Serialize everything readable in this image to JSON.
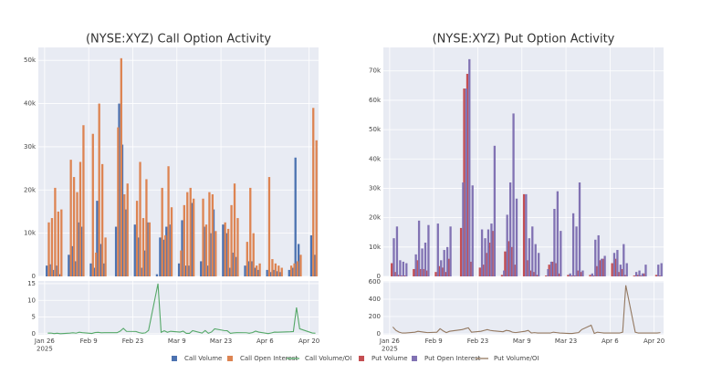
{
  "chart_data": [
    {
      "type": "bar",
      "title": "(NYSE:XYZ) Call Option Activity",
      "x": [
        "2025-01-27",
        "2025-01-28",
        "2025-01-29",
        "2025-01-30",
        "2025-01-31",
        "2025-02-03",
        "2025-02-04",
        "2025-02-05",
        "2025-02-06",
        "2025-02-07",
        "2025-02-10",
        "2025-02-11",
        "2025-02-12",
        "2025-02-13",
        "2025-02-14",
        "2025-02-18",
        "2025-02-19",
        "2025-02-20",
        "2025-02-21",
        "2025-02-24",
        "2025-02-25",
        "2025-02-26",
        "2025-02-27",
        "2025-02-28",
        "2025-03-03",
        "2025-03-04",
        "2025-03-05",
        "2025-03-06",
        "2025-03-07",
        "2025-03-10",
        "2025-03-11",
        "2025-03-12",
        "2025-03-13",
        "2025-03-14",
        "2025-03-17",
        "2025-03-18",
        "2025-03-19",
        "2025-03-20",
        "2025-03-21",
        "2025-03-24",
        "2025-03-25",
        "2025-03-26",
        "2025-03-27",
        "2025-03-28",
        "2025-03-31",
        "2025-04-01",
        "2025-04-02",
        "2025-04-03",
        "2025-04-04",
        "2025-04-07",
        "2025-04-08",
        "2025-04-09",
        "2025-04-10",
        "2025-04-11",
        "2025-04-14",
        "2025-04-15",
        "2025-04-16",
        "2025-04-17",
        "2025-04-21",
        "2025-04-22"
      ],
      "series": [
        {
          "name": "Call Volume",
          "type": "bar",
          "color": "#4c72b0",
          "values": [
            2500,
            2800,
            1500,
            2500,
            500,
            5000,
            7000,
            3500,
            12500,
            11500,
            3000,
            2000,
            17500,
            7500,
            3000,
            11500,
            40000,
            30500,
            15500,
            12000,
            9000,
            2000,
            6000,
            12500,
            500,
            9000,
            8500,
            11500,
            12000,
            3000,
            13000,
            2500,
            2500,
            17000,
            3500,
            11500,
            2500,
            10000,
            15500,
            12000,
            10000,
            2000,
            5500,
            4500,
            2500,
            3500,
            3500,
            2000,
            1500,
            1500,
            1000,
            1500,
            1200,
            1000,
            1500,
            2000,
            27500,
            7500,
            9500,
            5000
          ]
        },
        {
          "name": "Call Open Interest",
          "type": "bar",
          "color": "#dd8452",
          "values": [
            12500,
            13500,
            20500,
            15000,
            15500,
            27000,
            23000,
            19500,
            26500,
            35000,
            33000,
            5500,
            40000,
            26000,
            9000,
            34500,
            50500,
            19000,
            21500,
            17500,
            26500,
            13500,
            22500,
            12500,
            30,
            20500,
            9500,
            25500,
            16000,
            6000,
            16500,
            19500,
            20500,
            18000,
            18000,
            12000,
            19500,
            19000,
            10500,
            12500,
            11000,
            16500,
            21500,
            13500,
            8000,
            20500,
            10000,
            2500,
            3000,
            23000,
            4000,
            3000,
            2500,
            2000,
            2500,
            3000,
            3500,
            5000,
            39000,
            31500
          ]
        },
        {
          "name": "Call Volume/OI",
          "type": "line",
          "axis": "y2",
          "color": "#55a868",
          "values": [
            0.2,
            0.21,
            0.07,
            0.17,
            0.03,
            0.19,
            0.3,
            0.18,
            0.47,
            0.33,
            0.09,
            0.36,
            0.44,
            0.29,
            0.33,
            0.33,
            0.79,
            1.61,
            0.72,
            0.69,
            0.34,
            0.15,
            0.27,
            1,
            15,
            0.44,
            0.89,
            0.45,
            0.75,
            0.5,
            0.79,
            0.13,
            0.12,
            0.94,
            0.19,
            0.96,
            0.13,
            0.53,
            1.48,
            0.96,
            0.91,
            0.12,
            0.26,
            0.33,
            0.31,
            0.17,
            0.35,
            0.8,
            0.5,
            0.07,
            0.25,
            0.5,
            0.48,
            0.5,
            0.6,
            0.67,
            7.86,
            1.5,
            0.24,
            0.16
          ]
        }
      ],
      "xlim": [
        "2025-01-24",
        "2025-04-23"
      ],
      "xticks": [
        {
          "value": "2025-01-26",
          "label": "Jan 26\n2025"
        },
        {
          "value": "2025-02-09",
          "label": "Feb 9"
        },
        {
          "value": "2025-02-23",
          "label": "Feb 23"
        },
        {
          "value": "2025-03-09",
          "label": "Mar 9"
        },
        {
          "value": "2025-03-23",
          "label": "Mar 23"
        },
        {
          "value": "2025-04-06",
          "label": "Apr 6"
        },
        {
          "value": "2025-04-20",
          "label": "Apr 20"
        }
      ],
      "ylim": [
        0,
        53000
      ],
      "yticks": [
        0,
        {
          "value": 10000,
          "label": "10k"
        },
        {
          "value": 20000,
          "label": "20k"
        },
        {
          "value": 30000,
          "label": "30k"
        },
        {
          "value": 40000,
          "label": "40k"
        },
        {
          "value": 50000,
          "label": "50k"
        }
      ],
      "y2lim": [
        -0.3,
        15.8
      ],
      "y2ticks": [
        0,
        5,
        10,
        15
      ],
      "grid": true
    },
    {
      "type": "bar",
      "title": "(NYSE:XYZ) Put Option Activity",
      "x": [
        "2025-01-27",
        "2025-01-28",
        "2025-01-29",
        "2025-01-30",
        "2025-01-31",
        "2025-02-03",
        "2025-02-04",
        "2025-02-05",
        "2025-02-06",
        "2025-02-07",
        "2025-02-10",
        "2025-02-11",
        "2025-02-12",
        "2025-02-13",
        "2025-02-14",
        "2025-02-18",
        "2025-02-19",
        "2025-02-20",
        "2025-02-21",
        "2025-02-24",
        "2025-02-25",
        "2025-02-26",
        "2025-02-27",
        "2025-02-28",
        "2025-03-03",
        "2025-03-04",
        "2025-03-05",
        "2025-03-06",
        "2025-03-07",
        "2025-03-10",
        "2025-03-11",
        "2025-03-12",
        "2025-03-13",
        "2025-03-14",
        "2025-03-17",
        "2025-03-18",
        "2025-03-19",
        "2025-03-20",
        "2025-03-21",
        "2025-03-24",
        "2025-03-25",
        "2025-03-26",
        "2025-03-27",
        "2025-03-28",
        "2025-03-31",
        "2025-04-01",
        "2025-04-02",
        "2025-04-03",
        "2025-04-04",
        "2025-04-07",
        "2025-04-08",
        "2025-04-09",
        "2025-04-10",
        "2025-04-11",
        "2025-04-14",
        "2025-04-15",
        "2025-04-16",
        "2025-04-17",
        "2025-04-21",
        "2025-04-22"
      ],
      "series": [
        {
          "name": "Put Volume",
          "type": "bar",
          "color": "#c44e52",
          "values": [
            4500,
            1500,
            500,
            300,
            300,
            2500,
            5500,
            2500,
            2500,
            2000,
            1500,
            3500,
            3000,
            1500,
            6000,
            16500,
            64000,
            69000,
            5000,
            3000,
            4000,
            8000,
            11500,
            15500,
            500,
            8500,
            12000,
            10000,
            4000,
            28000,
            5500,
            2000,
            1500,
            500,
            300,
            4000,
            5000,
            4500,
            1000,
            500,
            300,
            300,
            2000,
            1500,
            500,
            300,
            3500,
            5500,
            6000,
            4500,
            6000,
            1500,
            2500,
            500,
            300,
            500,
            300,
            1000,
            500,
            300
          ]
        },
        {
          "name": "Put Open Interest",
          "type": "bar",
          "color": "#8172b3",
          "values": [
            13000,
            17000,
            5500,
            5000,
            4500,
            7500,
            19000,
            9500,
            11500,
            17500,
            18000,
            5500,
            9000,
            10000,
            17000,
            32000,
            64000,
            74000,
            31000,
            16000,
            13000,
            16000,
            18000,
            44500,
            2000,
            21000,
            32000,
            55500,
            26500,
            28000,
            13000,
            17000,
            11000,
            8000,
            2500,
            5000,
            23000,
            29000,
            15500,
            1000,
            21500,
            17000,
            32000,
            2000,
            1000,
            12500,
            14000,
            6000,
            7000,
            8000,
            9000,
            4000,
            11000,
            4500,
            1500,
            2000,
            1000,
            4000,
            4000,
            4500
          ]
        },
        {
          "name": "Put Volume/OI",
          "type": "line",
          "axis": "y2",
          "color": "#937860",
          "values": [
            80,
            40,
            20,
            10,
            10,
            20,
            30,
            25,
            20,
            15,
            20,
            60,
            35,
            15,
            30,
            50,
            60,
            70,
            20,
            30,
            40,
            50,
            40,
            35,
            25,
            40,
            35,
            20,
            15,
            30,
            40,
            10,
            15,
            10,
            10,
            10,
            20,
            15,
            10,
            5,
            5,
            10,
            15,
            50,
            100,
            5,
            20,
            15,
            10,
            10,
            10,
            10,
            20,
            560,
            20,
            10,
            10,
            10,
            10,
            15
          ]
        }
      ],
      "xlim": [
        "2025-01-24",
        "2025-04-23"
      ],
      "xticks": [
        {
          "value": "2025-01-26",
          "label": "Jan 26\n2025"
        },
        {
          "value": "2025-02-09",
          "label": "Feb 9"
        },
        {
          "value": "2025-02-23",
          "label": "Feb 23"
        },
        {
          "value": "2025-03-09",
          "label": "Mar 9"
        },
        {
          "value": "2025-03-23",
          "label": "Mar 23"
        },
        {
          "value": "2025-04-06",
          "label": "Apr 6"
        },
        {
          "value": "2025-04-20",
          "label": "Apr 20"
        }
      ],
      "ylim": [
        0,
        78000
      ],
      "yticks": [
        0,
        {
          "value": 10000,
          "label": "10k"
        },
        {
          "value": 20000,
          "label": "20k"
        },
        {
          "value": 30000,
          "label": "30k"
        },
        {
          "value": 40000,
          "label": "40k"
        },
        {
          "value": 50000,
          "label": "50k"
        },
        {
          "value": 60000,
          "label": "60k"
        },
        {
          "value": 70000,
          "label": "70k"
        }
      ],
      "y2lim": [
        -10,
        610
      ],
      "y2ticks": [
        0,
        200,
        400,
        600
      ],
      "grid": true
    }
  ]
}
